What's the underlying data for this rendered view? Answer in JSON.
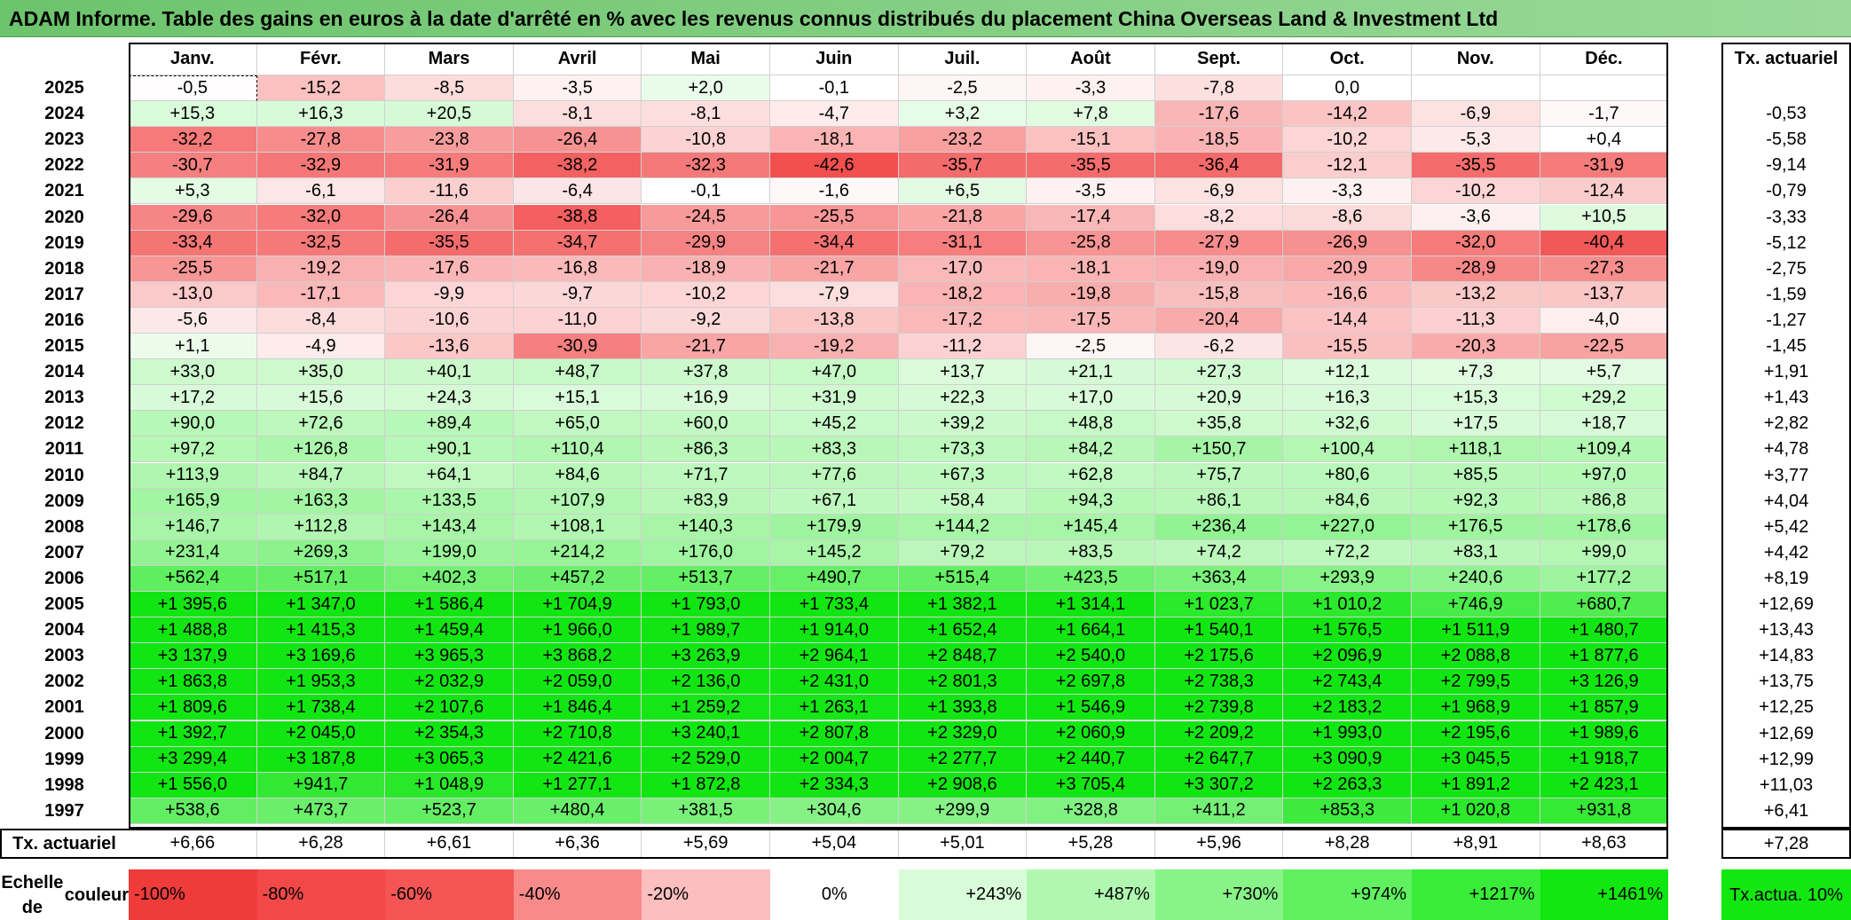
{
  "title": "ADAM Informe. Table des gains en euros à la date d'arrêté en % avec les revenus connus distribués du placement China Overseas Land & Investment Ltd",
  "months": [
    "Janv.",
    "Févr.",
    "Mars",
    "Avril",
    "Mai",
    "Juin",
    "Juil.",
    "Août",
    "Sept.",
    "Oct.",
    "Nov.",
    "Déc."
  ],
  "annual_header": "Tx. actuariel",
  "rows": [
    {
      "year": "2025",
      "values": [
        "-0,5",
        "-15,2",
        "-8,5",
        "-3,5",
        "+2,0",
        "-0,1",
        "-2,5",
        "-3,3",
        "-7,8",
        "0,0",
        "",
        ""
      ],
      "rate": ""
    },
    {
      "year": "2024",
      "values": [
        "+15,3",
        "+16,3",
        "+20,5",
        "-8,1",
        "-8,1",
        "-4,7",
        "+3,2",
        "+7,8",
        "-17,6",
        "-14,2",
        "-6,9",
        "-1,7"
      ],
      "rate": "-0,53"
    },
    {
      "year": "2023",
      "values": [
        "-32,2",
        "-27,8",
        "-23,8",
        "-26,4",
        "-10,8",
        "-18,1",
        "-23,2",
        "-15,1",
        "-18,5",
        "-10,2",
        "-5,3",
        "+0,4"
      ],
      "rate": "-5,58"
    },
    {
      "year": "2022",
      "values": [
        "-30,7",
        "-32,9",
        "-31,9",
        "-38,2",
        "-32,3",
        "-42,6",
        "-35,7",
        "-35,5",
        "-36,4",
        "-12,1",
        "-35,5",
        "-31,9"
      ],
      "rate": "-9,14"
    },
    {
      "year": "2021",
      "values": [
        "+5,3",
        "-6,1",
        "-11,6",
        "-6,4",
        "-0,1",
        "-1,6",
        "+6,5",
        "-3,5",
        "-6,9",
        "-3,3",
        "-10,2",
        "-12,4"
      ],
      "rate": "-0,79"
    },
    {
      "year": "2020",
      "values": [
        "-29,6",
        "-32,0",
        "-26,4",
        "-38,8",
        "-24,5",
        "-25,5",
        "-21,8",
        "-17,4",
        "-8,2",
        "-8,6",
        "-3,6",
        "+10,5"
      ],
      "rate": "-3,33"
    },
    {
      "year": "2019",
      "values": [
        "-33,4",
        "-32,5",
        "-35,5",
        "-34,7",
        "-29,9",
        "-34,4",
        "-31,1",
        "-25,8",
        "-27,9",
        "-26,9",
        "-32,0",
        "-40,4"
      ],
      "rate": "-5,12"
    },
    {
      "year": "2018",
      "values": [
        "-25,5",
        "-19,2",
        "-17,6",
        "-16,8",
        "-18,9",
        "-21,7",
        "-17,0",
        "-18,1",
        "-19,0",
        "-20,9",
        "-28,9",
        "-27,3"
      ],
      "rate": "-2,75"
    },
    {
      "year": "2017",
      "values": [
        "-13,0",
        "-17,1",
        "-9,9",
        "-9,7",
        "-10,2",
        "-7,9",
        "-18,2",
        "-19,8",
        "-15,8",
        "-16,6",
        "-13,2",
        "-13,7"
      ],
      "rate": "-1,59"
    },
    {
      "year": "2016",
      "values": [
        "-5,6",
        "-8,4",
        "-10,6",
        "-11,0",
        "-9,2",
        "-13,8",
        "-17,2",
        "-17,5",
        "-20,4",
        "-14,4",
        "-11,3",
        "-4,0"
      ],
      "rate": "-1,27"
    },
    {
      "year": "2015",
      "values": [
        "+1,1",
        "-4,9",
        "-13,6",
        "-30,9",
        "-21,7",
        "-19,2",
        "-11,2",
        "-2,5",
        "-6,2",
        "-15,5",
        "-20,3",
        "-22,5"
      ],
      "rate": "-1,45"
    },
    {
      "year": "2014",
      "values": [
        "+33,0",
        "+35,0",
        "+40,1",
        "+48,7",
        "+37,8",
        "+47,0",
        "+13,7",
        "+21,1",
        "+27,3",
        "+12,1",
        "+7,3",
        "+5,7"
      ],
      "rate": "+1,91"
    },
    {
      "year": "2013",
      "values": [
        "+17,2",
        "+15,6",
        "+24,3",
        "+15,1",
        "+16,9",
        "+31,9",
        "+22,3",
        "+17,0",
        "+20,9",
        "+16,3",
        "+15,3",
        "+29,2"
      ],
      "rate": "+1,43"
    },
    {
      "year": "2012",
      "values": [
        "+90,0",
        "+72,6",
        "+89,4",
        "+65,0",
        "+60,0",
        "+45,2",
        "+39,2",
        "+48,8",
        "+35,8",
        "+32,6",
        "+17,5",
        "+18,7"
      ],
      "rate": "+2,82"
    },
    {
      "year": "2011",
      "values": [
        "+97,2",
        "+126,8",
        "+90,1",
        "+110,4",
        "+86,3",
        "+83,3",
        "+73,3",
        "+84,2",
        "+150,7",
        "+100,4",
        "+118,1",
        "+109,4"
      ],
      "rate": "+4,78"
    },
    {
      "year": "2010",
      "values": [
        "+113,9",
        "+84,7",
        "+64,1",
        "+84,6",
        "+71,7",
        "+77,6",
        "+67,3",
        "+62,8",
        "+75,7",
        "+80,6",
        "+85,5",
        "+97,0"
      ],
      "rate": "+3,77"
    },
    {
      "year": "2009",
      "values": [
        "+165,9",
        "+163,3",
        "+133,5",
        "+107,9",
        "+83,9",
        "+67,1",
        "+58,4",
        "+94,3",
        "+86,1",
        "+84,6",
        "+92,3",
        "+86,8"
      ],
      "rate": "+4,04"
    },
    {
      "year": "2008",
      "values": [
        "+146,7",
        "+112,8",
        "+143,4",
        "+108,1",
        "+140,3",
        "+179,9",
        "+144,2",
        "+145,4",
        "+236,4",
        "+227,0",
        "+176,5",
        "+178,6"
      ],
      "rate": "+5,42"
    },
    {
      "year": "2007",
      "values": [
        "+231,4",
        "+269,3",
        "+199,0",
        "+214,2",
        "+176,0",
        "+145,2",
        "+79,2",
        "+83,5",
        "+74,2",
        "+72,2",
        "+83,1",
        "+99,0"
      ],
      "rate": "+4,42"
    },
    {
      "year": "2006",
      "values": [
        "+562,4",
        "+517,1",
        "+402,3",
        "+457,2",
        "+513,7",
        "+490,7",
        "+515,4",
        "+423,5",
        "+363,4",
        "+293,9",
        "+240,6",
        "+177,2"
      ],
      "rate": "+8,19"
    },
    {
      "year": "2005",
      "values": [
        "+1 395,6",
        "+1 347,0",
        "+1 586,4",
        "+1 704,9",
        "+1 793,0",
        "+1 733,4",
        "+1 382,1",
        "+1 314,1",
        "+1 023,7",
        "+1 010,2",
        "+746,9",
        "+680,7"
      ],
      "rate": "+12,69"
    },
    {
      "year": "2004",
      "values": [
        "+1 488,8",
        "+1 415,3",
        "+1 459,4",
        "+1 966,0",
        "+1 989,7",
        "+1 914,0",
        "+1 652,4",
        "+1 664,1",
        "+1 540,1",
        "+1 576,5",
        "+1 511,9",
        "+1 480,7"
      ],
      "rate": "+13,43"
    },
    {
      "year": "2003",
      "values": [
        "+3 137,9",
        "+3 169,6",
        "+3 965,3",
        "+3 868,2",
        "+3 263,9",
        "+2 964,1",
        "+2 848,7",
        "+2 540,0",
        "+2 175,6",
        "+2 096,9",
        "+2 088,8",
        "+1 877,6"
      ],
      "rate": "+14,83"
    },
    {
      "year": "2002",
      "values": [
        "+1 863,8",
        "+1 953,3",
        "+2 032,9",
        "+2 059,0",
        "+2 136,0",
        "+2 431,0",
        "+2 801,3",
        "+2 697,8",
        "+2 738,3",
        "+2 743,4",
        "+2 799,5",
        "+3 126,9"
      ],
      "rate": "+13,75"
    },
    {
      "year": "2001",
      "values": [
        "+1 809,6",
        "+1 738,4",
        "+2 107,6",
        "+1 846,4",
        "+1 259,2",
        "+1 263,1",
        "+1 393,8",
        "+1 546,9",
        "+2 739,8",
        "+2 183,2",
        "+1 968,9",
        "+1 857,9"
      ],
      "rate": "+12,25"
    },
    {
      "year": "2000",
      "values": [
        "+1 392,7",
        "+2 045,0",
        "+2 354,3",
        "+2 710,8",
        "+3 240,1",
        "+2 807,8",
        "+2 329,0",
        "+2 060,9",
        "+2 209,2",
        "+1 993,0",
        "+2 195,6",
        "+1 989,6"
      ],
      "rate": "+12,69"
    },
    {
      "year": "1999",
      "values": [
        "+3 299,4",
        "+3 187,8",
        "+3 065,3",
        "+2 421,6",
        "+2 529,0",
        "+2 004,7",
        "+2 277,7",
        "+2 440,7",
        "+2 647,7",
        "+3 090,9",
        "+3 045,5",
        "+1 918,7"
      ],
      "rate": "+12,99"
    },
    {
      "year": "1998",
      "values": [
        "+1 556,0",
        "+941,7",
        "+1 048,9",
        "+1 277,1",
        "+1 872,8",
        "+2 334,3",
        "+2 908,6",
        "+3 705,4",
        "+3 307,2",
        "+2 263,3",
        "+1 891,2",
        "+2 423,1"
      ],
      "rate": "+11,03"
    },
    {
      "year": "1997",
      "values": [
        "+538,6",
        "+473,7",
        "+523,7",
        "+480,4",
        "+381,5",
        "+304,6",
        "+299,9",
        "+328,8",
        "+411,2",
        "+853,3",
        "+1 020,8",
        "+931,8"
      ],
      "rate": "+6,41"
    }
  ],
  "footer": {
    "label": "Tx. actuariel",
    "values": [
      "+6,66",
      "+6,28",
      "+6,61",
      "+6,36",
      "+5,69",
      "+5,04",
      "+5,01",
      "+5,28",
      "+5,96",
      "+8,28",
      "+8,91",
      "+8,63"
    ],
    "rate": "+7,28"
  },
  "legend": {
    "label_line1": "Echelle de",
    "label_line2": "couleur",
    "items": [
      {
        "text": "-100%",
        "color": "#f03b3b",
        "align": "left"
      },
      {
        "text": "-80%",
        "color": "#f34848",
        "align": "left"
      },
      {
        "text": "-60%",
        "color": "#f55555",
        "align": "left"
      },
      {
        "text": "-40%",
        "color": "#f98a8a",
        "align": "left"
      },
      {
        "text": "-20%",
        "color": "#fcbebe",
        "align": "left"
      },
      {
        "text": "0%",
        "color": "#ffffff",
        "align": "center"
      },
      {
        "text": "+243%",
        "color": "#d8fcd8",
        "align": "right"
      },
      {
        "text": "+487%",
        "color": "#b0f8b0",
        "align": "right"
      },
      {
        "text": "+730%",
        "color": "#88f488",
        "align": "right"
      },
      {
        "text": "+974%",
        "color": "#60f060",
        "align": "right"
      },
      {
        "text": "+1217%",
        "color": "#38ec38",
        "align": "right"
      },
      {
        "text": "+1461%",
        "color": "#10e810",
        "align": "right"
      }
    ],
    "rate_label_line1": "Tx.",
    "rate_label_line2": "actua. 10%",
    "rate_color": "#10e810"
  }
}
